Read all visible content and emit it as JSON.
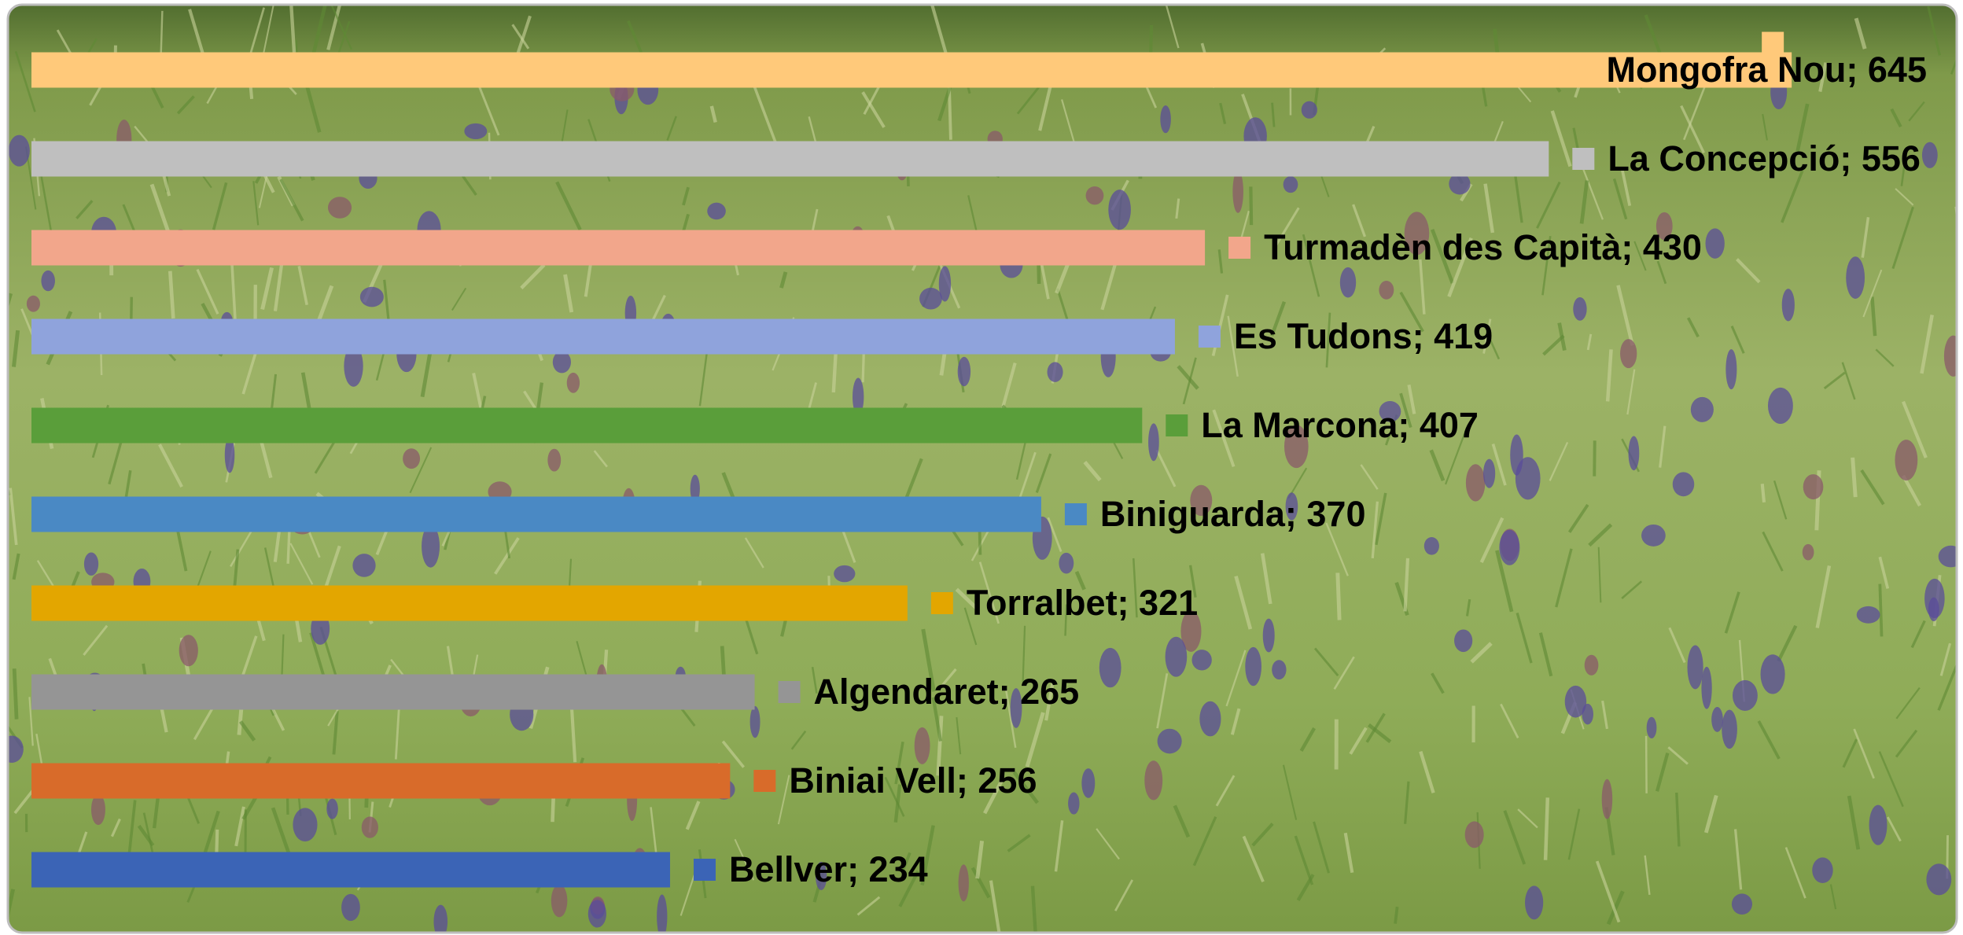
{
  "chart_data": {
    "type": "bar",
    "orientation": "horizontal",
    "values": [
      645,
      556,
      430,
      419,
      407,
      370,
      321,
      265,
      256,
      234
    ],
    "value_labels": [
      "Mongofra Nou; 645",
      "La Concepció; 556",
      "Turmadèn des Capità; 430",
      "Es Tudons; 419",
      "La Marcona; 407",
      "Biniguarda; 370",
      "Torralbet; 321",
      "Algendaret; 265",
      "Biniai Vell; 256",
      "Bellver; 234"
    ],
    "colors": [
      "#ffc97a",
      "#bfbfbf",
      "#f2a68b",
      "#8fa3dc",
      "#5a9e3a",
      "#4a89c4",
      "#e3a600",
      "#959595",
      "#d86b2a",
      "#3b64b6"
    ],
    "xlim": [
      0,
      700
    ]
  }
}
